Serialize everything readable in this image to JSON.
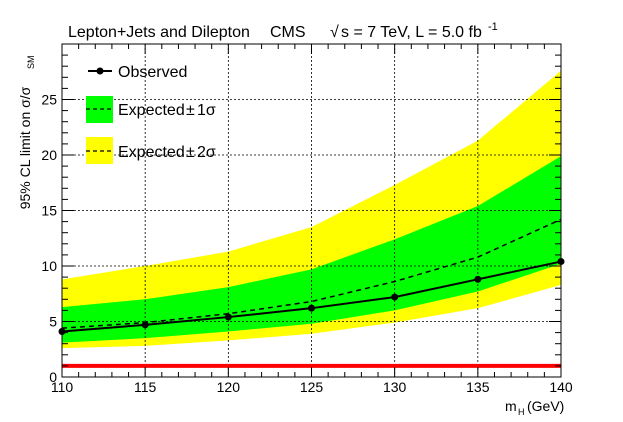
{
  "chart_data": {
    "type": "line",
    "title_left": "Lepton+Jets and Dilepton",
    "title_right": {
      "experiment": "CMS",
      "sqrt_symbol": "√",
      "energy_text": "s = 7 TeV, L = 5.0 fb",
      "lumi_exponent": "-1"
    },
    "xlabel": {
      "main": "m",
      "sub": "H",
      "unit": " (GeV)"
    },
    "ylabel": {
      "main": "95% CL limit on σ/σ",
      "sub": "SM"
    },
    "x": [
      110,
      115,
      120,
      125,
      130,
      135,
      140
    ],
    "xlim": [
      110,
      140
    ],
    "ylim": [
      0,
      30
    ],
    "xticks": [
      110,
      115,
      120,
      125,
      130,
      135,
      140
    ],
    "yticks": [
      0,
      5,
      10,
      15,
      20,
      25
    ],
    "grid": true,
    "reference_line": {
      "y": 1,
      "color": "#ff0000"
    },
    "series": [
      {
        "name": "Observed",
        "values": [
          4.1,
          4.7,
          5.4,
          6.2,
          7.2,
          8.8,
          10.4
        ],
        "color": "#000000",
        "style": "solid-markers"
      },
      {
        "name": "Expected",
        "values": [
          4.4,
          4.9,
          5.7,
          6.8,
          8.6,
          10.8,
          14.2
        ],
        "color": "#000000",
        "style": "dashed"
      },
      {
        "name": "1 sigma band",
        "lower": [
          3.1,
          3.5,
          4.1,
          4.8,
          6.0,
          7.7,
          10.2
        ],
        "upper": [
          6.3,
          7.0,
          8.1,
          9.7,
          12.4,
          15.4,
          19.9
        ],
        "color": "#00ff00"
      },
      {
        "name": "2 sigma band",
        "lower": [
          2.6,
          2.8,
          3.3,
          3.9,
          4.9,
          6.2,
          8.3
        ],
        "upper": [
          8.8,
          10.0,
          11.3,
          13.5,
          17.3,
          21.3,
          27.6
        ],
        "color": "#ffff00"
      }
    ],
    "legend": {
      "placement": "top-left",
      "entries": [
        {
          "label": "Observed"
        },
        {
          "label": "Expected",
          "suffix": " 1σ",
          "pm": "±"
        },
        {
          "label": "Expected",
          "suffix": " 2σ",
          "pm": "±"
        }
      ]
    }
  }
}
